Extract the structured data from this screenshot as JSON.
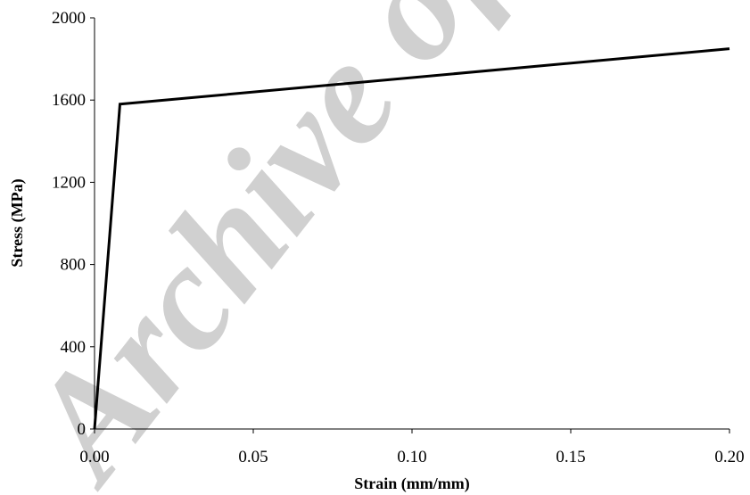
{
  "chart_data": {
    "type": "line",
    "title": "",
    "xlabel": "Strain (mm/mm)",
    "ylabel": "Stress (MPa)",
    "xlim": [
      0,
      0.2
    ],
    "ylim": [
      0,
      2000
    ],
    "x_ticks": [
      "0.00",
      "0.05",
      "0.10",
      "0.15",
      "0.20"
    ],
    "y_ticks": [
      "0",
      "400",
      "800",
      "1200",
      "1600",
      "2000"
    ],
    "grid": false,
    "legend": "none",
    "series": [
      {
        "color": "#000000",
        "x": [
          0,
          0.008,
          0.2
        ],
        "y": [
          0,
          1580,
          1850
        ]
      }
    ]
  },
  "watermark": {
    "text": "Archive of SID",
    "color": "#c8c8c8"
  }
}
